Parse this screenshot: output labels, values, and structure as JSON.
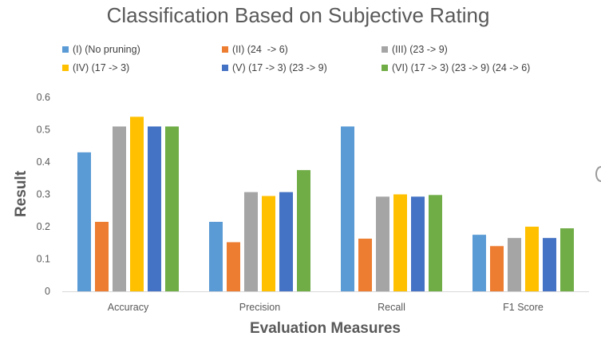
{
  "chart_data": {
    "type": "bar",
    "title": "Classification Based on Subjective Rating",
    "xlabel": "Evaluation Measures",
    "ylabel": "Result",
    "categories": [
      "Accuracy",
      "Precision",
      "Recall",
      "F1 Score"
    ],
    "ylim": [
      0,
      0.6
    ],
    "yticks": [
      0,
      0.1,
      0.2,
      0.3,
      0.4,
      0.5,
      0.6
    ],
    "ytick_labels": [
      "0",
      "0.1",
      "0.2",
      "0.3",
      "0.4",
      "0.5",
      "0.6"
    ],
    "grid": false,
    "legend": "top",
    "series": [
      {
        "name": "(I) (No pruning)",
        "color": "#5b9bd5",
        "values": [
          0.43,
          0.215,
          0.51,
          0.175
        ]
      },
      {
        "name": "(II) (24  -> 6)",
        "color": "#ed7d31",
        "values": [
          0.215,
          0.152,
          0.163,
          0.14
        ]
      },
      {
        "name": "(III) (23 -> 9)",
        "color": "#a5a5a5",
        "values": [
          0.51,
          0.307,
          0.293,
          0.165
        ]
      },
      {
        "name": "(IV) (17 -> 3)",
        "color": "#ffc000",
        "values": [
          0.54,
          0.295,
          0.3,
          0.2
        ]
      },
      {
        "name": "(V) (17 -> 3) (23 -> 9)",
        "color": "#4472c4",
        "values": [
          0.51,
          0.307,
          0.293,
          0.165
        ]
      },
      {
        "name": "(VI) (17 -> 3) (23 -> 9) (24 -> 6)",
        "color": "#70ad47",
        "values": [
          0.51,
          0.375,
          0.298,
          0.195
        ]
      }
    ]
  }
}
